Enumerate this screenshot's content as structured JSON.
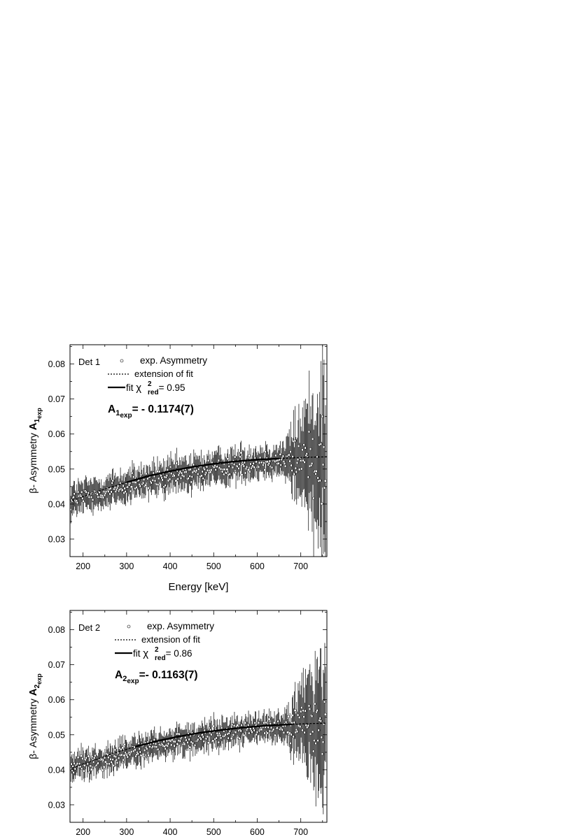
{
  "chart_data": [
    {
      "type": "scatter",
      "panel_label": "Det 1",
      "xlabel": "Energy [keV]",
      "ylabel": {
        "prefix": "β- Asymmetry ",
        "main": "A",
        "sub1": "1",
        "sub2": "exp"
      },
      "xlim": [
        170,
        760
      ],
      "ylim": [
        0.025,
        0.0855
      ],
      "xticks": [
        "200",
        "300",
        "400",
        "500",
        "600",
        "700"
      ],
      "yticks": [
        "0.03",
        "0.04",
        "0.05",
        "0.06",
        "0.07",
        "0.08"
      ],
      "legend": {
        "points": "exp. Asymmetry",
        "dashed": "extension of fit",
        "solid": "fit",
        "chi_symbol": "χ",
        "chi_sup": "2",
        "chi_sub": "red",
        "chi_value": "= 0.95"
      },
      "annotation": {
        "main": "A",
        "sub1": "1",
        "sub2": "exp",
        "text": "= - 0.1174(7)"
      },
      "fit_curve": {
        "dashed_before": {
          "x": [
            175,
            220,
            260,
            300
          ],
          "y": [
            0.041,
            0.043,
            0.0447,
            0.0462
          ]
        },
        "solid": {
          "x": [
            300,
            350,
            400,
            450,
            500,
            550,
            600,
            650
          ],
          "y": [
            0.0462,
            0.048,
            0.0494,
            0.0506,
            0.0515,
            0.0522,
            0.0527,
            0.053
          ]
        },
        "dashed_after": {
          "x": [
            650,
            700,
            760
          ],
          "y": [
            0.053,
            0.0533,
            0.0535
          ]
        }
      },
      "series_model": {
        "start": 0.041,
        "end": 0.0535,
        "scatter": 0.004
      }
    },
    {
      "type": "scatter",
      "panel_label": "Det 2",
      "xlabel": "",
      "ylabel": {
        "prefix": "β- Asymmetry ",
        "main": "A",
        "sub1": "2",
        "sub2": "exp"
      },
      "xlim": [
        170,
        760
      ],
      "ylim": [
        0.025,
        0.0855
      ],
      "xticks": [
        "200",
        "300",
        "400",
        "500",
        "600",
        "700"
      ],
      "yticks": [
        "0.03",
        "0.04",
        "0.05",
        "0.06",
        "0.07",
        "0.08"
      ],
      "legend": {
        "points": "exp. Asymmetry",
        "dashed": "extension of fit",
        "solid": "fit",
        "chi_symbol": "χ",
        "chi_sup": "2",
        "chi_sub": "red",
        "chi_value": "= 0.86"
      },
      "annotation": {
        "main": "A",
        "sub1": "2",
        "sub2": "exp",
        "text": "=- 0.1163(7)"
      },
      "fit_curve": {
        "dashed_before": {
          "x": [
            175,
            220,
            270,
            320
          ],
          "y": [
            0.0405,
            0.0425,
            0.0447,
            0.0466
          ]
        },
        "solid": {
          "x": [
            320,
            370,
            420,
            470,
            520,
            570,
            620,
            680
          ],
          "y": [
            0.0466,
            0.0482,
            0.0495,
            0.0506,
            0.0514,
            0.0521,
            0.0526,
            0.053
          ]
        },
        "dashed_after": {
          "x": [
            680,
            720,
            760
          ],
          "y": [
            0.053,
            0.0532,
            0.0533
          ]
        }
      },
      "series_model": {
        "start": 0.0405,
        "end": 0.0533,
        "scatter": 0.0035
      }
    }
  ]
}
